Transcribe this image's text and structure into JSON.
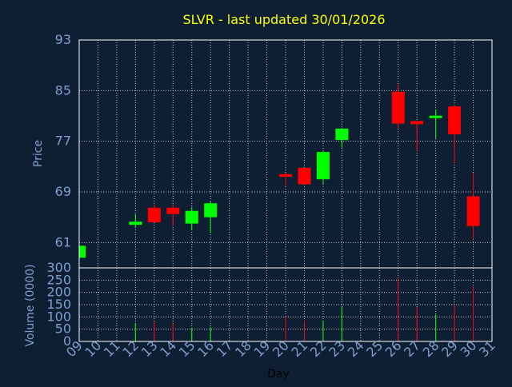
{
  "chart_data": {
    "type": "candlestick",
    "title": "SLVR - last updated 30/01/2026",
    "xlabel": "Day",
    "price_axis": {
      "label": "Price",
      "ticks": [
        "93",
        "85",
        "77",
        "69",
        "61"
      ],
      "ylim": [
        57,
        93
      ]
    },
    "volume_axis": {
      "label": "Volume (0000)",
      "ticks": [
        "300",
        "250",
        "200",
        "150",
        "100",
        "50",
        "0"
      ],
      "ylim": [
        0,
        300
      ]
    },
    "x_ticks": [
      "09",
      "10",
      "11",
      "12",
      "13",
      "14",
      "15",
      "16",
      "17",
      "18",
      "19",
      "20",
      "21",
      "22",
      "23",
      "24",
      "25",
      "26",
      "27",
      "28",
      "29",
      "30",
      "31"
    ],
    "grid": true,
    "colors": {
      "up": "#00ff00",
      "down": "#ff0000",
      "title": "#ffff00",
      "axis_text": "#7f9fcf",
      "frame": "#ffffff",
      "background": "#0e1f33"
    },
    "candles": [
      {
        "day": "09",
        "open": 58.6,
        "high": 60.5,
        "low": 58.6,
        "close": 60.5,
        "volume": 0
      },
      {
        "day": "12",
        "open": 63.8,
        "high": 65.5,
        "low": 63.4,
        "close": 64.3,
        "volume": 75
      },
      {
        "day": "13",
        "open": 66.5,
        "high": 67.0,
        "low": 64.2,
        "close": 64.2,
        "volume": 80
      },
      {
        "day": "14",
        "open": 66.5,
        "high": 67.0,
        "low": 63.7,
        "close": 65.5,
        "volume": 72
      },
      {
        "day": "15",
        "open": 64.0,
        "high": 66.6,
        "low": 63.0,
        "close": 66.0,
        "volume": 55
      },
      {
        "day": "16",
        "open": 65.0,
        "high": 67.5,
        "low": 62.5,
        "close": 67.2,
        "volume": 58
      },
      {
        "day": "20",
        "open": 71.8,
        "high": 72.0,
        "low": 69.9,
        "close": 71.4,
        "volume": 100
      },
      {
        "day": "21",
        "open": 72.8,
        "high": 72.8,
        "low": 70.2,
        "close": 70.2,
        "volume": 85
      },
      {
        "day": "22",
        "open": 71.0,
        "high": 75.5,
        "low": 70.3,
        "close": 75.3,
        "volume": 85
      },
      {
        "day": "23",
        "open": 77.2,
        "high": 79.1,
        "low": 76.0,
        "close": 79.0,
        "volume": 140
      },
      {
        "day": "26",
        "open": 84.8,
        "high": 86.0,
        "low": 79.0,
        "close": 79.8,
        "volume": 260
      },
      {
        "day": "27",
        "open": 80.2,
        "high": 80.2,
        "low": 75.4,
        "close": 79.7,
        "volume": 140
      },
      {
        "day": "28",
        "open": 80.7,
        "high": 82.0,
        "low": 77.5,
        "close": 81.0,
        "volume": 110
      },
      {
        "day": "29",
        "open": 82.5,
        "high": 82.8,
        "low": 73.5,
        "close": 78.1,
        "volume": 145
      },
      {
        "day": "30",
        "open": 68.3,
        "high": 72.0,
        "low": 61.5,
        "close": 63.6,
        "volume": 225
      }
    ]
  }
}
